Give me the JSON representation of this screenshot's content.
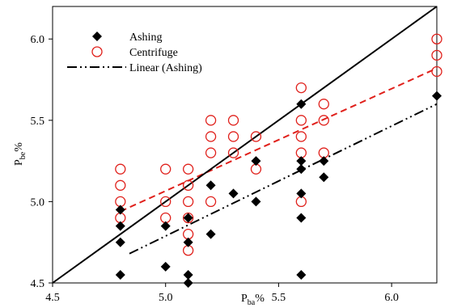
{
  "chart_data": {
    "type": "scatter",
    "title": "",
    "xlabel": "P",
    "xlabel_sub": "ba",
    "xlabel_suffix": "%",
    "ylabel": "P",
    "ylabel_sub": "be",
    "ylabel_suffix": "%",
    "xlim": [
      4.5,
      6.2
    ],
    "ylim": [
      4.5,
      6.2
    ],
    "x_ticks": [
      4.5,
      5.0,
      5.5,
      6.0
    ],
    "y_ticks": [
      4.5,
      5.0,
      5.5,
      6.0
    ],
    "x_tick_labels": [
      "4.5",
      "5.0",
      "5.5",
      "6.0"
    ],
    "y_tick_labels": [
      "4.5",
      "5.0",
      "5.5",
      "6.0"
    ],
    "grid": false,
    "legend_position": "top-left",
    "series": [
      {
        "name": "Ashing",
        "marker": "diamond",
        "color": "#000000",
        "points": [
          [
            4.8,
            4.55
          ],
          [
            4.8,
            4.75
          ],
          [
            4.8,
            4.85
          ],
          [
            4.8,
            4.95
          ],
          [
            5.0,
            4.6
          ],
          [
            5.0,
            4.85
          ],
          [
            5.1,
            4.5
          ],
          [
            5.1,
            4.55
          ],
          [
            5.1,
            4.75
          ],
          [
            5.1,
            4.9
          ],
          [
            5.2,
            4.8
          ],
          [
            5.2,
            5.1
          ],
          [
            5.3,
            5.05
          ],
          [
            5.4,
            5.0
          ],
          [
            5.4,
            5.25
          ],
          [
            5.6,
            4.55
          ],
          [
            5.6,
            4.9
          ],
          [
            5.6,
            5.05
          ],
          [
            5.6,
            5.2
          ],
          [
            5.6,
            5.25
          ],
          [
            5.6,
            5.6
          ],
          [
            5.7,
            5.15
          ],
          [
            5.7,
            5.25
          ],
          [
            6.2,
            5.65
          ]
        ]
      },
      {
        "name": "Centrifuge",
        "marker": "open-circle",
        "color": "#e0201b",
        "points": [
          [
            4.8,
            4.9
          ],
          [
            4.8,
            5.0
          ],
          [
            4.8,
            5.1
          ],
          [
            4.8,
            5.2
          ],
          [
            5.0,
            4.9
          ],
          [
            5.0,
            5.0
          ],
          [
            5.0,
            5.2
          ],
          [
            5.1,
            4.7
          ],
          [
            5.1,
            4.8
          ],
          [
            5.1,
            4.9
          ],
          [
            5.1,
            5.0
          ],
          [
            5.1,
            5.1
          ],
          [
            5.1,
            5.2
          ],
          [
            5.2,
            5.0
          ],
          [
            5.2,
            5.3
          ],
          [
            5.2,
            5.4
          ],
          [
            5.2,
            5.5
          ],
          [
            5.3,
            5.3
          ],
          [
            5.3,
            5.4
          ],
          [
            5.3,
            5.5
          ],
          [
            5.4,
            5.2
          ],
          [
            5.4,
            5.4
          ],
          [
            5.6,
            5.0
          ],
          [
            5.6,
            5.3
          ],
          [
            5.6,
            5.4
          ],
          [
            5.6,
            5.5
          ],
          [
            5.6,
            5.7
          ],
          [
            5.7,
            5.3
          ],
          [
            5.7,
            5.5
          ],
          [
            5.7,
            5.6
          ],
          [
            6.2,
            5.8
          ],
          [
            6.2,
            5.9
          ],
          [
            6.2,
            6.0
          ]
        ]
      }
    ],
    "lines": [
      {
        "name": "Linear (Ashing)",
        "style": "dash-dot-dot",
        "color": "#000000",
        "from": [
          4.84,
          4.68
        ],
        "to": [
          6.2,
          5.6
        ]
      },
      {
        "name": "",
        "style": "dashed",
        "color": "#e0201b",
        "from": [
          4.8,
          4.94
        ],
        "to": [
          6.2,
          5.82
        ]
      },
      {
        "name": "",
        "style": "solid",
        "color": "#000000",
        "from": [
          4.5,
          4.5
        ],
        "to": [
          6.2,
          6.2
        ]
      }
    ]
  }
}
